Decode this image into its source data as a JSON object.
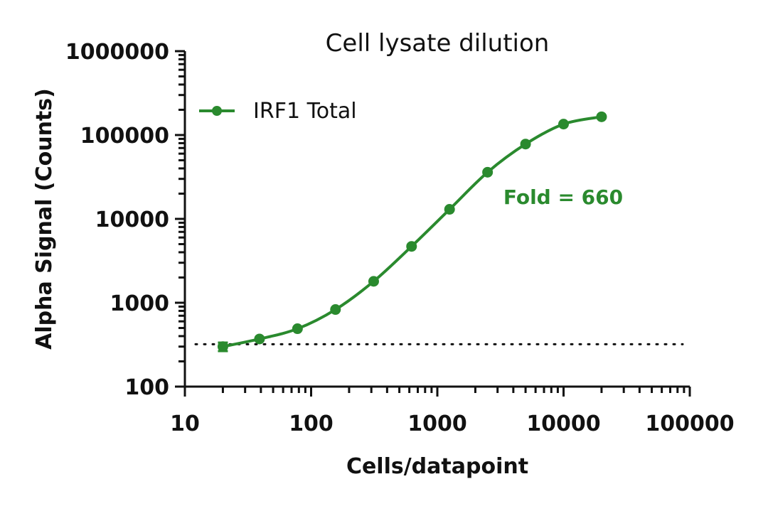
{
  "chart_data": {
    "type": "line",
    "title": "Cell lysate dilution",
    "xlabel": "Cells/datapoint",
    "ylabel": "Alpha Signal (Counts)",
    "xscale": "log",
    "yscale": "log",
    "xlim": [
      10,
      100000
    ],
    "ylim": [
      100,
      1000000
    ],
    "xticks": [
      "10",
      "100",
      "1000",
      "10000",
      "100000"
    ],
    "yticks": [
      "100",
      "1000",
      "10000",
      "100000",
      "1000000"
    ],
    "grid": false,
    "legend": {
      "placement": "top-left"
    },
    "series": [
      {
        "name": "IRF1 Total",
        "color": "#2a8a2e",
        "marker": "circle",
        "x": [
          20,
          39,
          78,
          156,
          313,
          625,
          1250,
          2500,
          5000,
          10000,
          20000
        ],
        "y": [
          300,
          370,
          490,
          830,
          1800,
          4700,
          13000,
          36000,
          78000,
          135000,
          165000
        ],
        "yerr": [
          35,
          0,
          0,
          0,
          0,
          0,
          0,
          0,
          0,
          0,
          0
        ]
      }
    ],
    "baseline": {
      "style": "dotted",
      "y": 320
    },
    "annotations": [
      {
        "text": "Fold = 660",
        "color": "#2a8a2e"
      }
    ]
  }
}
